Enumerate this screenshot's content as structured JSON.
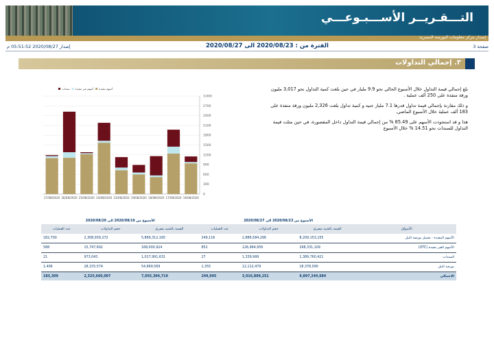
{
  "header": {
    "title": "التـــقـريــر الأســـبـوعـــي",
    "subtitle": "إصدار مركز معلومات البورصة المصرية",
    "page": "صفحة 3",
    "period": "الفترة من : 2020/08/23 الى 2020/08/27",
    "issued": "إصدار 2020/08/27 05:51:52 م"
  },
  "section": {
    "title": "٣. إجمالي التداولات",
    "paragraphs": [
      "بلغ إجمالي قيمة التداول خلال الأسبوع الحالي نحو 9.9 مليار في حين بلغت كمية التداول نحو 3,017 مليون ورقة منفذة على 250 ألف عملية .",
      "و ذلك مقارنة بإجمالي قيمة تداول قدرها 7.1 مليار جنيه و كمية تداول بلغت 2,326 مليون ورقة منفذة على 183 ألف عملية خلال الأسبوع الماضي.",
      "هذا و قد استحوذت الأسهم على 85.49 % من إجمالي قيمة التداول داخل المقصورة، في حين مثلت قيمة التداول للسندات نحو 14.51 % خلال الأسبوع"
    ]
  },
  "chart": {
    "type": "bar",
    "stacked": true,
    "categories": [
      "27/08/2020",
      "26/08/2020",
      "25/08/2020",
      "24/08/2020",
      "23/08/2020",
      "19/08/2020",
      "18/08/2020",
      "17/08/2020",
      "16/08/2020"
    ],
    "series": [
      {
        "name": "أسهم مقيدة",
        "color": "#b5a06a",
        "values": [
          1100,
          1110,
          1220,
          1570,
          730,
          600,
          520,
          1240,
          940
        ]
      },
      {
        "name": "أسهم غير مقيدة",
        "color": "#bfe8ee",
        "values": [
          60,
          170,
          30,
          60,
          80,
          60,
          50,
          210,
          40
        ]
      },
      {
        "name": "سندات",
        "color": "#6b0f1a",
        "values": [
          30,
          1240,
          30,
          550,
          320,
          230,
          590,
          520,
          170
        ]
      }
    ],
    "ylim": [
      0,
      3000
    ],
    "yticks": [
      0,
      300,
      600,
      900,
      1200,
      1500,
      1800,
      2100,
      2400,
      2700,
      {
        "value": 3000,
        "label": "3,000"
      }
    ],
    "legend": "top"
  },
  "table": {
    "groups": [
      "الأسبوع من 2020/08/23 الى 2020/08/27",
      "الأسبوع من 2020/08/16 الى 2020/08/20"
    ],
    "columns": [
      "الأسواق",
      "القيمة بالجنيه مصري",
      "حجم التداولات",
      "عدد العمليات",
      "القيمة بالجنيه مصري",
      "حجم التداولات",
      "عدد العمليات"
    ],
    "rows": [
      [
        "الأسهم المقيدة - تشمل بورصة النيل",
        "8,209,153,155",
        "2,886,584,296",
        "249,116",
        "5,869,312,165",
        "2,308,939,272",
        "182,700"
      ],
      [
        "الأسهم الغير مقيدة (OTC)",
        "298,331,109",
        "126,964,956",
        "852",
        "168,000,924",
        "15,747,692",
        "588"
      ],
      [
        "السندات",
        "1,389,760,421",
        "1,339,999",
        "27",
        "1,017,991,631",
        "973,043",
        "21"
      ],
      [
        "بورصة النيل",
        "18,378,090",
        "12,112,479",
        "1,355",
        "54,669,569",
        "28,155,574",
        "1,406"
      ],
      [
        "الاجمالي",
        "9,897,244,684",
        "3,016,889,251",
        "249,995",
        "7,055,304,719",
        "2,325,660,007",
        "183,309"
      ]
    ]
  }
}
